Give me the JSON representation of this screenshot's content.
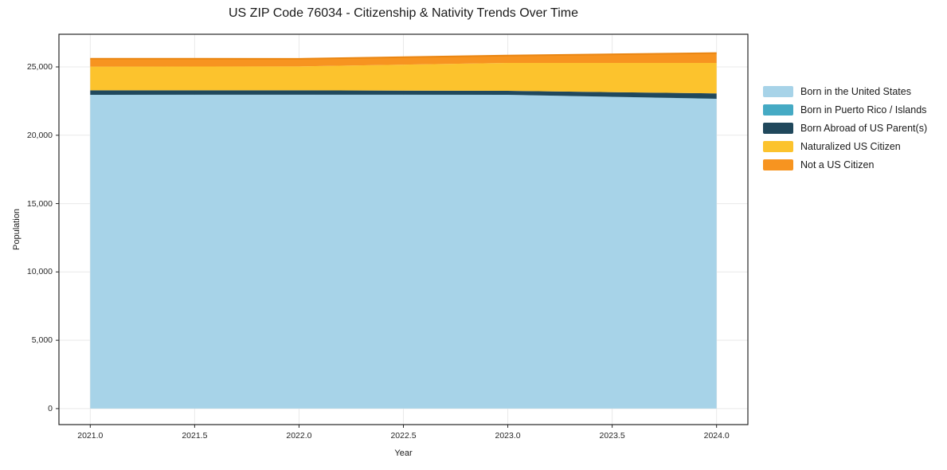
{
  "chart_data": {
    "type": "area",
    "stacked": true,
    "title": "US ZIP Code 76034 - Citizenship & Nativity Trends Over Time",
    "xlabel": "Year",
    "ylabel": "Population",
    "x": [
      2021,
      2022,
      2023,
      2024
    ],
    "series": [
      {
        "name": "Born in the United States",
        "color": "#A7D3E8",
        "values": [
          22950,
          22960,
          22950,
          22660
        ]
      },
      {
        "name": "Born in Puerto Rico / Islands",
        "color": "#45AAC4",
        "values": [
          10,
          10,
          10,
          10
        ]
      },
      {
        "name": "Born Abroad of US Parent(s)",
        "color": "#20485C",
        "values": [
          330,
          320,
          290,
          390
        ]
      },
      {
        "name": "Naturalized US Citizen",
        "color": "#FCC32D",
        "values": [
          1730,
          1750,
          2040,
          2230
        ]
      },
      {
        "name": "Not a US Citizen",
        "color": "#F79420",
        "values": [
          580,
          550,
          540,
          720
        ]
      }
    ],
    "totals": [
      25600,
      25590,
      25830,
      26010
    ],
    "xlim": [
      2020.85,
      2024.15
    ],
    "ylim": [
      -1170,
      27390
    ],
    "xticks": [
      2021.0,
      2021.5,
      2022.0,
      2022.5,
      2023.0,
      2023.5,
      2024.0
    ],
    "xtick_labels": [
      "2021.0",
      "2021.5",
      "2022.0",
      "2022.5",
      "2023.0",
      "2023.5",
      "2024.0"
    ],
    "yticks": [
      0,
      5000,
      10000,
      15000,
      20000,
      25000
    ],
    "ytick_labels": [
      "0",
      "5,000",
      "10,000",
      "15,000",
      "20,000",
      "25,000"
    ],
    "grid": true,
    "grid_color": "#e9e9e9",
    "frame_color": "#262626",
    "top_edge_stroke": "#EA8612",
    "legend_position": "right-outside",
    "background": "#ffffff"
  }
}
